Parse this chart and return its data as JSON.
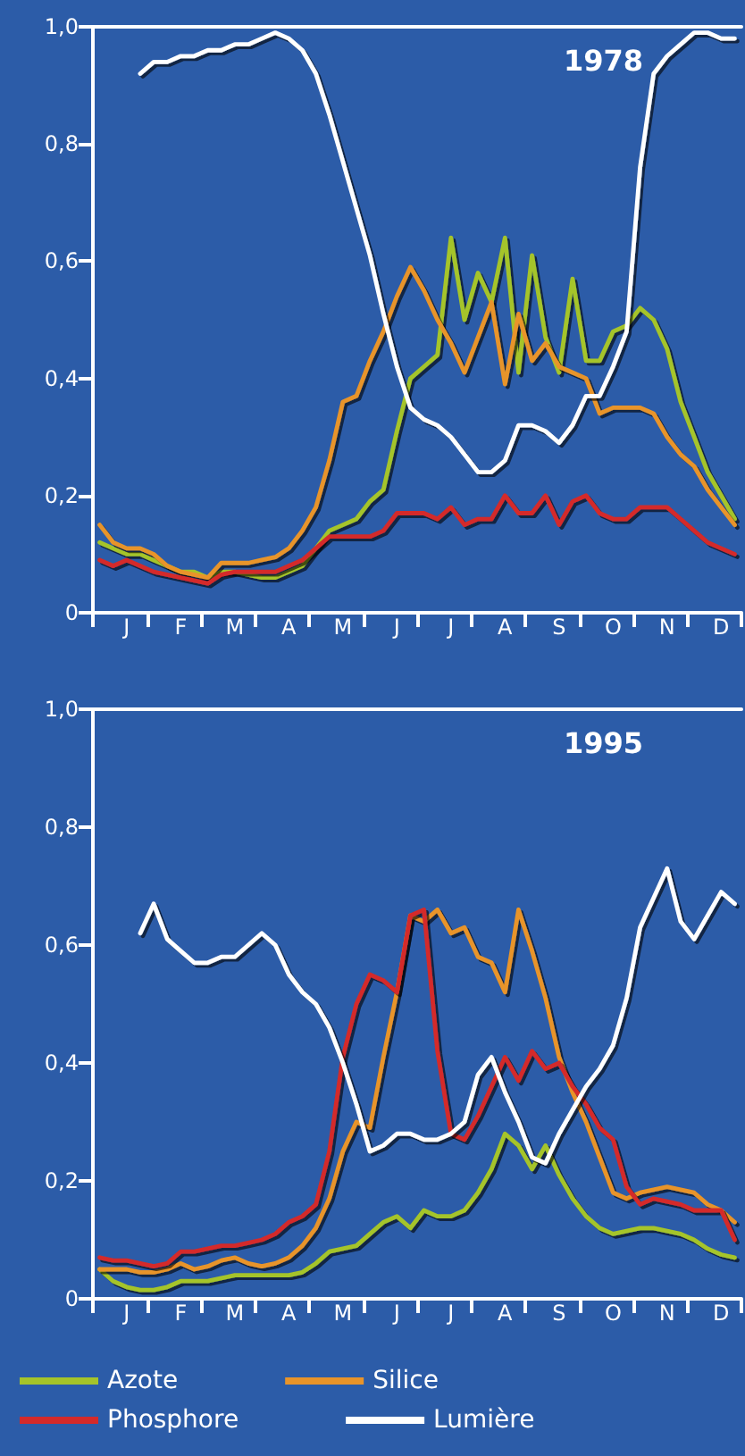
{
  "chart_data": [
    {
      "type": "line",
      "title": "1978",
      "ylim": [
        0,
        1
      ],
      "categories": [
        null,
        null,
        "J",
        null,
        null,
        null,
        "F",
        null,
        null,
        null,
        "M",
        null,
        null,
        null,
        "A",
        null,
        null,
        null,
        "M",
        null,
        null,
        null,
        "J",
        null,
        null,
        null,
        "J",
        null,
        null,
        null,
        "A",
        null,
        null,
        null,
        "S",
        null,
        null,
        null,
        "O",
        null,
        null,
        null,
        "N",
        null,
        null,
        null,
        "D",
        null
      ],
      "yticks": [
        0,
        {
          "value": 0.2,
          "label": "0,2"
        },
        {
          "value": 0.4,
          "label": "0,4"
        },
        {
          "value": 0.6,
          "label": "0,6"
        },
        {
          "value": 0.8,
          "label": "0,8"
        },
        {
          "value": 1,
          "label": "1,0"
        }
      ],
      "grid": false,
      "legend": false,
      "marker": "none",
      "line_style": "solid",
      "series": [
        {
          "color": "#a5c42a",
          "values": [
            0.12,
            0.11,
            0.1,
            0.1,
            0.09,
            0.08,
            0.07,
            0.07,
            0.06,
            0.07,
            0.07,
            0.065,
            0.06,
            0.06,
            0.07,
            0.08,
            0.11,
            0.14,
            0.15,
            0.16,
            0.19,
            0.21,
            0.31,
            0.4,
            0.42,
            0.44,
            0.64,
            0.5,
            0.58,
            0.53,
            0.64,
            0.41,
            0.61,
            0.47,
            0.41,
            0.57,
            0.43,
            0.43,
            0.48,
            0.49,
            0.52,
            0.5,
            0.45,
            0.36,
            0.3,
            0.24,
            0.2,
            0.16
          ]
        },
        {
          "color": "#e8942a",
          "values": [
            0.15,
            0.12,
            0.11,
            0.11,
            0.1,
            0.08,
            0.07,
            0.065,
            0.06,
            0.085,
            0.085,
            0.085,
            0.09,
            0.095,
            0.11,
            0.14,
            0.18,
            0.26,
            0.36,
            0.37,
            0.43,
            0.48,
            0.54,
            0.59,
            0.55,
            0.5,
            0.46,
            0.41,
            0.47,
            0.53,
            0.39,
            0.51,
            0.43,
            0.46,
            0.42,
            0.41,
            0.4,
            0.34,
            0.35,
            0.35,
            0.35,
            0.34,
            0.3,
            0.27,
            0.25,
            0.21,
            0.18,
            0.15
          ]
        },
        {
          "color": "#d42a2a",
          "values": [
            0.09,
            0.08,
            0.09,
            0.08,
            0.07,
            0.065,
            0.06,
            0.055,
            0.05,
            0.065,
            0.07,
            0.07,
            0.07,
            0.07,
            0.08,
            0.09,
            0.11,
            0.13,
            0.13,
            0.13,
            0.13,
            0.14,
            0.17,
            0.17,
            0.17,
            0.16,
            0.18,
            0.15,
            0.16,
            0.16,
            0.2,
            0.17,
            0.17,
            0.2,
            0.15,
            0.19,
            0.2,
            0.17,
            0.16,
            0.16,
            0.18,
            0.18,
            0.18,
            0.16,
            0.14,
            0.12,
            0.11,
            0.1
          ]
        },
        {
          "color": "#ffffff",
          "values": [
            null,
            null,
            null,
            0.92,
            0.94,
            0.94,
            0.95,
            0.95,
            0.96,
            0.96,
            0.97,
            0.97,
            0.98,
            0.99,
            0.98,
            0.96,
            0.92,
            0.85,
            0.77,
            0.69,
            0.61,
            0.51,
            0.42,
            0.35,
            0.33,
            0.32,
            0.3,
            0.27,
            0.24,
            0.24,
            0.26,
            0.32,
            0.32,
            0.31,
            0.29,
            0.32,
            0.37,
            0.37,
            0.42,
            0.48,
            0.76,
            0.92,
            0.95,
            0.97,
            0.99,
            0.99,
            0.98,
            0.98
          ]
        }
      ]
    },
    {
      "type": "line",
      "title": "1995",
      "ylim": [
        0,
        1
      ],
      "categories": [
        null,
        null,
        "J",
        null,
        null,
        null,
        "F",
        null,
        null,
        null,
        "M",
        null,
        null,
        null,
        "A",
        null,
        null,
        null,
        "M",
        null,
        null,
        null,
        "J",
        null,
        null,
        null,
        "J",
        null,
        null,
        null,
        "A",
        null,
        null,
        null,
        "S",
        null,
        null,
        null,
        "O",
        null,
        null,
        null,
        "N",
        null,
        null,
        null,
        "D",
        null
      ],
      "yticks": [
        0,
        {
          "value": 0.2,
          "label": "0,2"
        },
        {
          "value": 0.4,
          "label": "0,4"
        },
        {
          "value": 0.6,
          "label": "0,6"
        },
        {
          "value": 0.8,
          "label": "0,8"
        },
        {
          "value": 1,
          "label": "1,0"
        }
      ],
      "grid": false,
      "legend": "bottom",
      "marker": "none",
      "line_style": "solid",
      "series": [
        {
          "name": "Azote",
          "color": "#a5c42a",
          "values": [
            0.05,
            0.03,
            0.02,
            0.015,
            0.015,
            0.02,
            0.03,
            0.03,
            0.03,
            0.035,
            0.04,
            0.04,
            0.04,
            0.04,
            0.04,
            0.045,
            0.06,
            0.08,
            0.085,
            0.09,
            0.11,
            0.13,
            0.14,
            0.12,
            0.15,
            0.14,
            0.14,
            0.15,
            0.18,
            0.22,
            0.28,
            0.26,
            0.22,
            0.26,
            0.21,
            0.17,
            0.14,
            0.12,
            0.11,
            0.115,
            0.12,
            0.12,
            0.115,
            0.11,
            0.1,
            0.085,
            0.075,
            0.07
          ]
        },
        {
          "name": "Silice",
          "color": "#e8942a",
          "values": [
            0.05,
            0.05,
            0.05,
            0.045,
            0.045,
            0.05,
            0.06,
            0.05,
            0.055,
            0.065,
            0.07,
            0.06,
            0.055,
            0.06,
            0.07,
            0.09,
            0.12,
            0.17,
            0.25,
            0.3,
            0.29,
            0.41,
            0.52,
            0.65,
            0.64,
            0.66,
            0.62,
            0.63,
            0.58,
            0.57,
            0.52,
            0.66,
            0.59,
            0.51,
            0.41,
            0.35,
            0.3,
            0.24,
            0.18,
            0.17,
            0.18,
            0.185,
            0.19,
            0.185,
            0.18,
            0.16,
            0.15,
            0.13
          ]
        },
        {
          "name": "Phosphore",
          "color": "#d42a2a",
          "values": [
            0.07,
            0.065,
            0.065,
            0.06,
            0.055,
            0.06,
            0.08,
            0.08,
            0.085,
            0.09,
            0.09,
            0.095,
            0.1,
            0.11,
            0.13,
            0.14,
            0.16,
            0.25,
            0.41,
            0.5,
            0.55,
            0.54,
            0.52,
            0.65,
            0.66,
            0.42,
            0.28,
            0.27,
            0.31,
            0.36,
            0.41,
            0.37,
            0.42,
            0.39,
            0.4,
            0.36,
            0.33,
            0.29,
            0.27,
            0.19,
            0.16,
            0.17,
            0.165,
            0.16,
            0.15,
            0.15,
            0.15,
            0.1
          ]
        },
        {
          "name": "Lumière",
          "color": "#ffffff",
          "values": [
            null,
            null,
            null,
            0.62,
            0.67,
            0.61,
            0.59,
            0.57,
            0.57,
            0.58,
            0.58,
            0.6,
            0.62,
            0.6,
            0.55,
            0.52,
            0.5,
            0.46,
            0.4,
            0.33,
            0.25,
            0.26,
            0.28,
            0.28,
            0.27,
            0.27,
            0.28,
            0.3,
            0.38,
            0.41,
            0.35,
            0.3,
            0.24,
            0.23,
            0.28,
            0.32,
            0.36,
            0.39,
            0.43,
            0.51,
            0.63,
            0.68,
            0.73,
            0.64,
            0.61,
            0.65,
            0.69,
            0.67
          ]
        }
      ]
    }
  ]
}
